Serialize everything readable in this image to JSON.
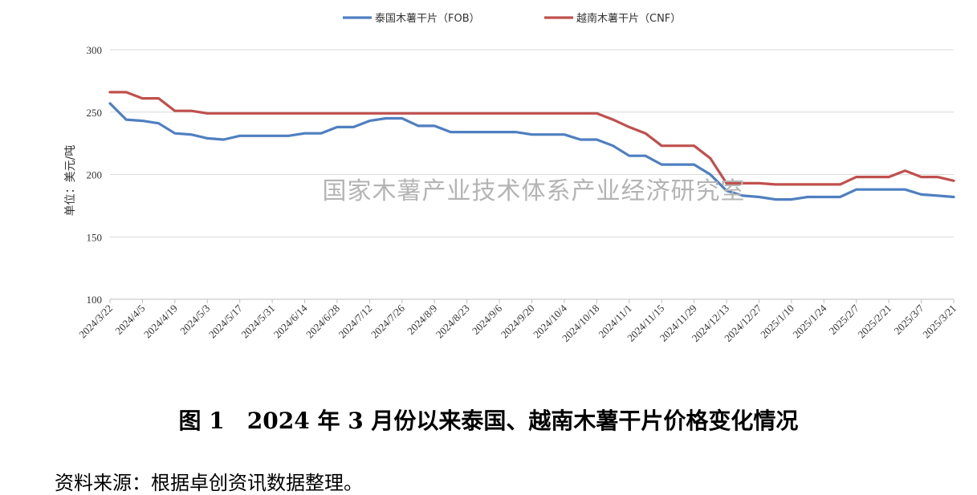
{
  "chart_data": {
    "type": "line",
    "ylabel": "单位：美元/吨",
    "ylim": [
      100,
      300
    ],
    "yticks": [
      100,
      150,
      200,
      250,
      300
    ],
    "grid": "horizontal",
    "legend_position": "top-center",
    "watermark": "国家木薯产业技术体系产业经济研究室",
    "xtick_labels": [
      "2024/3/22",
      "2024/4/5",
      "2024/4/19",
      "2024/5/3",
      "2024/5/17",
      "2024/5/31",
      "2024/6/14",
      "2024/6/28",
      "2024/7/12",
      "2024/7/26",
      "2024/8/9",
      "2024/8/23",
      "2024/9/6",
      "2024/9/20",
      "2024/10/4",
      "2024/10/18",
      "2024/11/1",
      "2024/11/15",
      "2024/11/29",
      "2024/12/13",
      "2024/12/27",
      "2025/1/10",
      "2025/1/24",
      "2025/2/7",
      "2025/2/21",
      "2025/3/7",
      "2025/3/21"
    ],
    "x": [
      "2024/3/22",
      "2024/3/29",
      "2024/4/5",
      "2024/4/12",
      "2024/4/19",
      "2024/4/26",
      "2024/5/3",
      "2024/5/10",
      "2024/5/17",
      "2024/5/24",
      "2024/5/31",
      "2024/6/7",
      "2024/6/14",
      "2024/6/21",
      "2024/6/28",
      "2024/7/5",
      "2024/7/12",
      "2024/7/19",
      "2024/7/26",
      "2024/8/2",
      "2024/8/9",
      "2024/8/16",
      "2024/8/23",
      "2024/8/30",
      "2024/9/6",
      "2024/9/13",
      "2024/9/20",
      "2024/9/27",
      "2024/10/4",
      "2024/10/11",
      "2024/10/18",
      "2024/10/25",
      "2024/11/1",
      "2024/11/8",
      "2024/11/15",
      "2024/11/22",
      "2024/11/29",
      "2024/12/6",
      "2024/12/13",
      "2024/12/20",
      "2024/12/27",
      "2025/1/3",
      "2025/1/10",
      "2025/1/17",
      "2025/1/24",
      "2025/1/31",
      "2025/2/7",
      "2025/2/14",
      "2025/2/21",
      "2025/2/28",
      "2025/3/7",
      "2025/3/14",
      "2025/3/21"
    ],
    "series": [
      {
        "name": "泰国木薯干片（FOB）",
        "color": "#4f7fc0",
        "values": [
          257,
          244,
          243,
          241,
          233,
          232,
          229,
          228,
          231,
          231,
          231,
          231,
          233,
          233,
          238,
          238,
          243,
          245,
          245,
          239,
          239,
          234,
          234,
          234,
          234,
          234,
          232,
          232,
          232,
          228,
          228,
          223,
          215,
          215,
          208,
          208,
          208,
          200,
          187,
          183,
          182,
          180,
          180,
          182,
          182,
          182,
          188,
          188,
          188,
          188,
          184,
          183,
          182
        ]
      },
      {
        "name": "越南木薯干片（CNF）",
        "color": "#c0504d",
        "values": [
          266,
          266,
          261,
          261,
          251,
          251,
          249,
          249,
          249,
          249,
          249,
          249,
          249,
          249,
          249,
          249,
          249,
          249,
          249,
          249,
          249,
          249,
          249,
          249,
          249,
          249,
          249,
          249,
          249,
          249,
          249,
          244,
          238,
          233,
          223,
          223,
          223,
          213,
          193,
          193,
          193,
          192,
          192,
          192,
          192,
          192,
          198,
          198,
          198,
          203,
          198,
          198,
          195
        ]
      }
    ]
  },
  "caption": "图 1　2024 年 3 月份以来泰国、越南木薯干片价格变化情况",
  "source_note": "资料来源：根据卓创资讯数据整理。"
}
